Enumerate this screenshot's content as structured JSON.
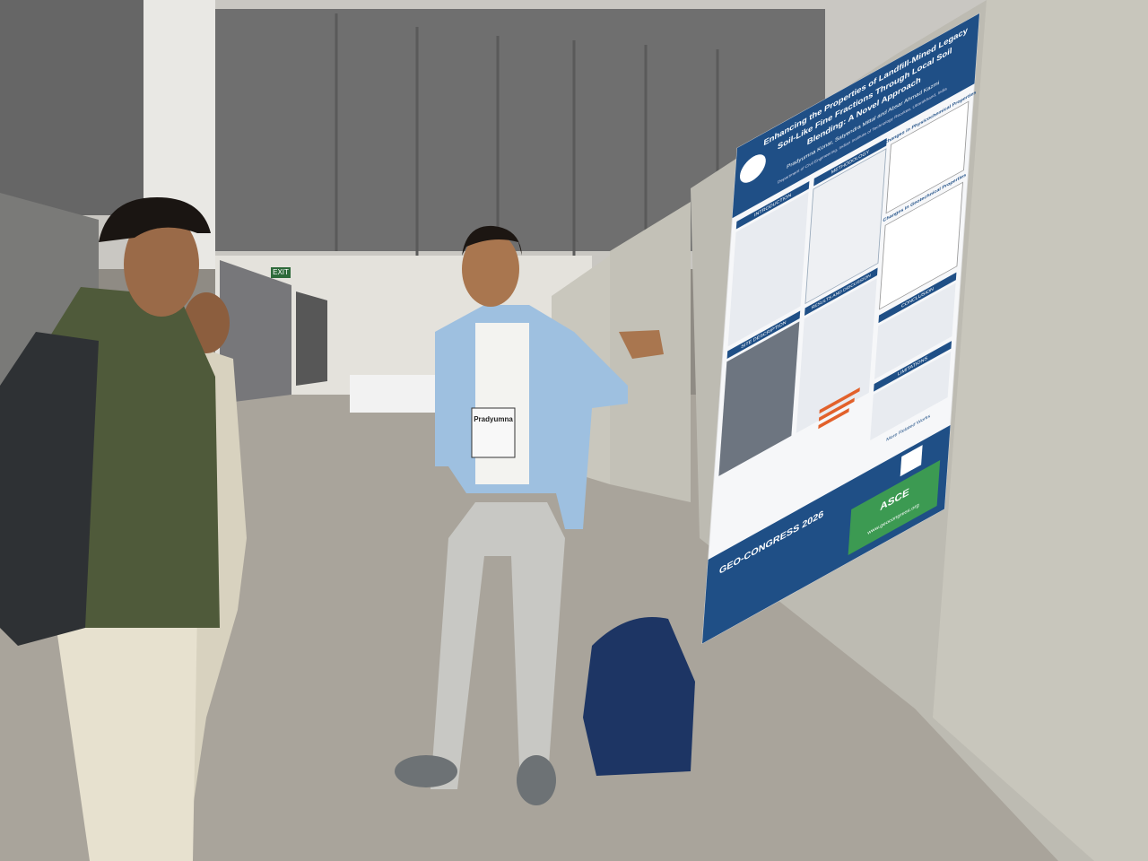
{
  "poster": {
    "title_lines": [
      "Enhancing the Properties of Landfill-Mined Legacy",
      "Soil-Like Fine Fractions Through Local Soil",
      "Blending: A Novel Approach"
    ],
    "authors": "Pradyumna Konar, Satyendra Mittal and Absar Ahmad Kazmi",
    "affiliation": "Department of Civil Engineering, Indian Institute of Technology Roorkee, Uttarakhand, India",
    "sections": {
      "introduction": "INTRODUCTION",
      "methodology": "METHODOLOGY",
      "site": "SITE DESCRIPTION",
      "results": "RESULTS AND DISCUSSION",
      "physico": "Changes in Physicochemical Properties",
      "geotech": "Changes in Geotechnical Properties",
      "conclusion": "CONCLUSION",
      "limitations": "LIMITATIONS",
      "related": "More Related Works"
    },
    "footer": {
      "event": "GEO-CONGRESS 2026",
      "org": "ASCE",
      "url": "www.geocongress.org"
    }
  },
  "badge": {
    "name": "Pradyumna"
  },
  "sign": "EXIT"
}
